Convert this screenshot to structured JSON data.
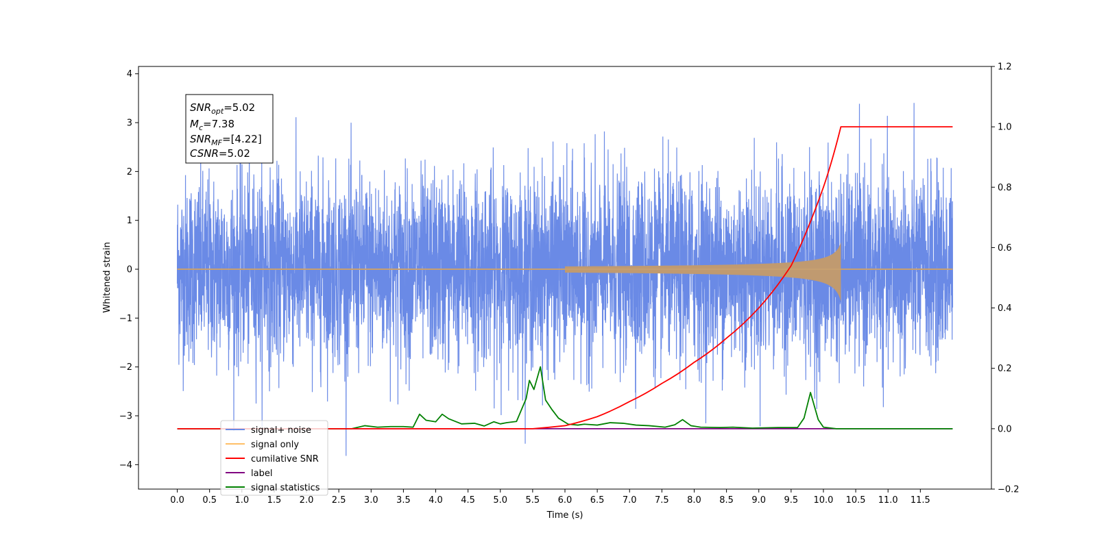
{
  "chart_data": {
    "type": "line",
    "xlabel": "Time (s)",
    "ylabel": "Whitened strain",
    "xlim": [
      -0.6,
      12.6
    ],
    "ylim": [
      -4.5,
      4.15
    ],
    "y2lim": [
      -0.2,
      1.2
    ],
    "x_ticks": [
      "0.0",
      "0.5",
      "1.0",
      "1.5",
      "2.0",
      "2.5",
      "3.0",
      "3.5",
      "4.0",
      "4.5",
      "5.0",
      "5.5",
      "6.0",
      "6.5",
      "7.0",
      "7.5",
      "8.0",
      "8.5",
      "9.0",
      "9.5",
      "10.0",
      "10.5",
      "11.0",
      "11.5"
    ],
    "y_ticks": [
      "−4",
      "−3",
      "−2",
      "−1",
      "0",
      "1",
      "2",
      "3",
      "4"
    ],
    "y2_ticks": [
      "−0.2",
      "0.0",
      "0.2",
      "0.4",
      "0.6",
      "0.8",
      "1.0",
      "1.2"
    ],
    "legend_position": "lower-left",
    "annotation": {
      "snr_opt_main": "SNR",
      "snr_opt_sub": "opt",
      "snr_opt_value": "=5.02",
      "mc_main": "M",
      "mc_sub": "c",
      "mc_value": "=7.38",
      "snr_mf_main": "SNR",
      "snr_mf_sub": "MF",
      "snr_mf_value": "=[4.22]",
      "csnr_main": "CSNR",
      "csnr_value": "=5.02"
    },
    "series": [
      {
        "name": "signal+ noise",
        "color": "#6a8ae6",
        "axis": "left",
        "description_values": {
          "x_range": [
            0.0,
            12.0
          ],
          "mean": 0.0,
          "typical_range": [
            -2.3,
            2.3
          ]
        }
      },
      {
        "name": "signal only",
        "color": "#ffbf66",
        "axis": "left",
        "chirp_end_x": 10.27,
        "chirp_peak_amplitude": 0.55
      },
      {
        "name": "cumilative SNR",
        "color": "#ff0000",
        "axis": "right",
        "x": [
          0.0,
          5.5,
          6.0,
          6.5,
          7.0,
          7.5,
          8.0,
          8.5,
          9.0,
          9.5,
          10.0,
          10.27,
          10.28,
          12.0
        ],
        "values": [
          0.0,
          0.0,
          0.01,
          0.04,
          0.09,
          0.15,
          0.22,
          0.3,
          0.4,
          0.54,
          0.8,
          1.0,
          1.0,
          1.0
        ]
      },
      {
        "name": "label",
        "color": "#800080",
        "axis": "right",
        "x": [
          0.0,
          12.0
        ],
        "values": [
          0.0,
          0.0
        ]
      },
      {
        "name": "signal statistics",
        "color": "#008000",
        "axis": "right",
        "x": [
          0.0,
          2.7,
          2.9,
          3.1,
          3.3,
          3.5,
          3.65,
          3.75,
          3.85,
          4.0,
          4.1,
          4.2,
          4.4,
          4.6,
          4.75,
          4.9,
          5.0,
          5.1,
          5.25,
          5.4,
          5.45,
          5.52,
          5.62,
          5.7,
          5.8,
          5.9,
          6.05,
          6.2,
          6.3,
          6.5,
          6.7,
          6.9,
          7.1,
          7.3,
          7.55,
          7.7,
          7.82,
          7.95,
          8.1,
          8.4,
          8.6,
          8.9,
          9.3,
          9.6,
          9.7,
          9.8,
          9.92,
          10.0,
          10.2,
          11.0,
          12.0
        ],
        "values": [
          0.0,
          0.0,
          0.01,
          0.005,
          0.007,
          0.007,
          0.005,
          0.048,
          0.028,
          0.023,
          0.048,
          0.033,
          0.016,
          0.018,
          0.009,
          0.023,
          0.016,
          0.02,
          0.024,
          0.1,
          0.16,
          0.13,
          0.205,
          0.095,
          0.063,
          0.035,
          0.015,
          0.012,
          0.015,
          0.012,
          0.02,
          0.018,
          0.012,
          0.01,
          0.005,
          0.013,
          0.03,
          0.01,
          0.005,
          0.004,
          0.005,
          0.002,
          0.004,
          0.004,
          0.035,
          0.12,
          0.03,
          0.005,
          0.0,
          0.0,
          0.0
        ]
      }
    ]
  }
}
